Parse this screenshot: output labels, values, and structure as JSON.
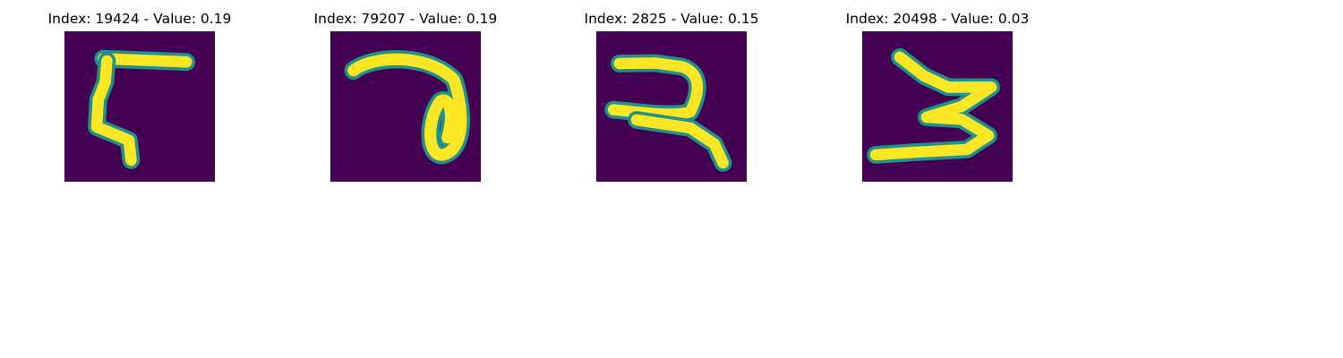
{
  "figure": {
    "background": "#ffffff",
    "colormap": "viridis",
    "colormap_low": "#440154",
    "colormap_high": "#fde725",
    "panels": [
      {
        "title": "Index: 19424 - Value: 0.19",
        "digit": "7",
        "icon": "handwritten-digit-image"
      },
      {
        "title": "Index: 79207 - Value: 0.19",
        "digit": "7",
        "icon": "handwritten-digit-image"
      },
      {
        "title": "Index: 2825 - Value: 0.15",
        "digit": "2",
        "icon": "handwritten-digit-image"
      },
      {
        "title": "Index: 20498 - Value: 0.03",
        "digit": "3",
        "icon": "handwritten-digit-image"
      }
    ]
  }
}
